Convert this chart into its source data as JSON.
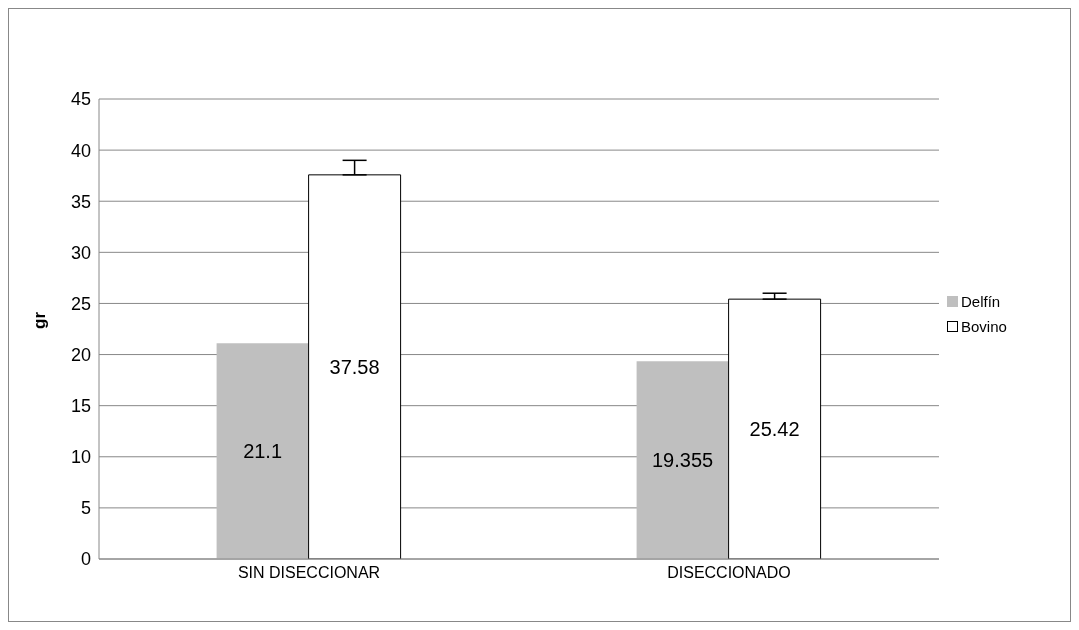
{
  "chart_data": {
    "type": "bar",
    "ylabel": "gr",
    "categories": [
      "SIN DISECCIONAR",
      "DISECCIONADO"
    ],
    "series": [
      {
        "name": "Delfín",
        "color": "#bfbfbf",
        "values": [
          21.1,
          19.355
        ]
      },
      {
        "name": "Bovino",
        "color": "#ffffff",
        "values": [
          37.58,
          25.42
        ],
        "errors": [
          [
            37.58,
            39.0
          ],
          [
            25.42,
            26.0
          ]
        ]
      }
    ],
    "ylim": [
      0,
      45
    ],
    "yticks": [
      0,
      5,
      10,
      15,
      20,
      25,
      30,
      35,
      40,
      45
    ],
    "grid": "y",
    "legend": "right",
    "data_labels": true
  }
}
